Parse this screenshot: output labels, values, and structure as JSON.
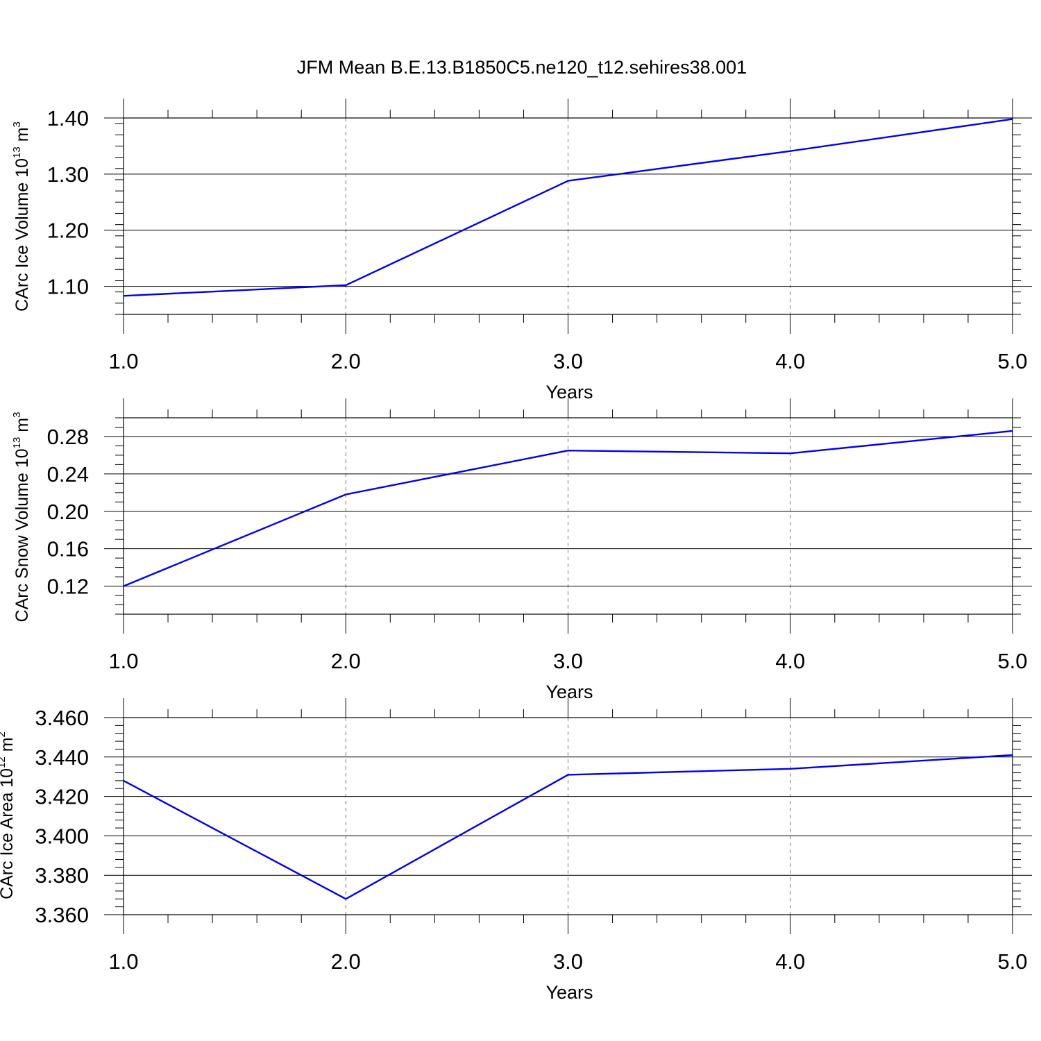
{
  "figure": {
    "title": "JFM Mean B.E.13.B1850C5.ne120_t12.sehires38.001",
    "line_color": "#0000ee"
  },
  "chart_data": [
    {
      "type": "line",
      "x": [
        1.0,
        2.0,
        3.0,
        4.0,
        5.0
      ],
      "series": [
        {
          "name": "CArc Ice Volume",
          "values": [
            1.083,
            1.102,
            1.288,
            1.341,
            1.398
          ]
        }
      ],
      "xlabel": "Years",
      "ylabel": {
        "base": "CArc Ice Volume 10",
        "exp": "13",
        "unit": " m",
        "unit_exp": "3"
      },
      "xlim": [
        1.0,
        5.0
      ],
      "ylim": [
        1.05,
        1.4
      ],
      "xticks": [
        "1.0",
        "2.0",
        "3.0",
        "4.0",
        "5.0"
      ],
      "yticks": [
        1.1,
        1.2,
        1.3,
        1.4
      ],
      "ytick_labels": [
        "1.10",
        "1.20",
        "1.30",
        "1.40"
      ],
      "yminor_step": 0.02
    },
    {
      "type": "line",
      "x": [
        1.0,
        2.0,
        3.0,
        4.0,
        5.0
      ],
      "series": [
        {
          "name": "CArc Snow Volume",
          "values": [
            0.12,
            0.218,
            0.265,
            0.262,
            0.286
          ]
        }
      ],
      "xlabel": "Years",
      "ylabel": {
        "base": "CArc Snow Volume 10",
        "exp": "13",
        "unit": " m",
        "unit_exp": "3"
      },
      "xlim": [
        1.0,
        5.0
      ],
      "ylim": [
        0.09,
        0.3
      ],
      "xticks": [
        "1.0",
        "2.0",
        "3.0",
        "4.0",
        "5.0"
      ],
      "yticks": [
        0.12,
        0.16,
        0.2,
        0.24,
        0.28
      ],
      "ytick_labels": [
        "0.12",
        "0.16",
        "0.20",
        "0.24",
        "0.28"
      ],
      "yminor_step": 0.01
    },
    {
      "type": "line",
      "x": [
        1.0,
        2.0,
        3.0,
        4.0,
        5.0
      ],
      "series": [
        {
          "name": "CArc Ice Area",
          "values": [
            3.428,
            3.368,
            3.431,
            3.434,
            3.441
          ]
        }
      ],
      "xlabel": "Years",
      "ylabel": {
        "base": "CArc Ice Area 10",
        "exp": "12",
        "unit": " m",
        "unit_exp": "2"
      },
      "xlim": [
        1.0,
        5.0
      ],
      "ylim": [
        3.36,
        3.46
      ],
      "xticks": [
        "1.0",
        "2.0",
        "3.0",
        "4.0",
        "5.0"
      ],
      "yticks": [
        3.36,
        3.38,
        3.4,
        3.42,
        3.44,
        3.46
      ],
      "ytick_labels": [
        "3.360",
        "3.380",
        "3.400",
        "3.420",
        "3.440",
        "3.460"
      ],
      "yminor_step": 0.004
    }
  ]
}
